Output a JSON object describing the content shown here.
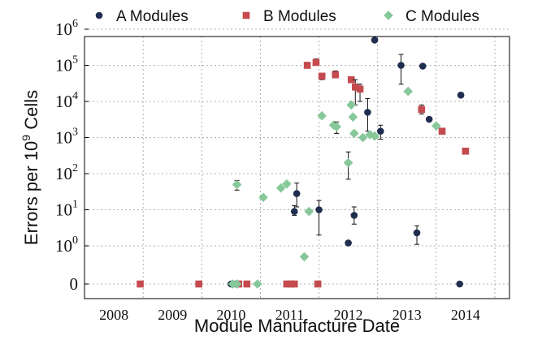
{
  "chart_data": {
    "type": "scatter",
    "title": "",
    "xlabel": "Module Manufacture Date",
    "ylabel": "Errors per 10^9 Cells",
    "ylabel_parts": [
      "Errors per 10",
      "9",
      " Cells"
    ],
    "y_scale": "log (with zero shown at bottom)",
    "ylim": [
      0,
      1000000
    ],
    "xlim": [
      2007.5,
      2014.75
    ],
    "grid": true,
    "legend_position": "top",
    "x_tick_labels": [
      "2008",
      "2009",
      "2010",
      "2011",
      "2012",
      "2013",
      "2014"
    ],
    "y_ticks": [
      {
        "value": 0,
        "base": "0",
        "exp": ""
      },
      {
        "value": 1,
        "base": "10",
        "exp": "0"
      },
      {
        "value": 10,
        "base": "10",
        "exp": "1"
      },
      {
        "value": 100,
        "base": "10",
        "exp": "2"
      },
      {
        "value": 1000,
        "base": "10",
        "exp": "3"
      },
      {
        "value": 10000,
        "base": "10",
        "exp": "4"
      },
      {
        "value": 100000,
        "base": "10",
        "exp": "5"
      },
      {
        "value": 1000000,
        "base": "10",
        "exp": "6"
      }
    ],
    "series": [
      {
        "name": "A Modules",
        "marker": "circle",
        "color": "#1f2d4f",
        "points": [
          {
            "x": 2010.0,
            "y": 0
          },
          {
            "x": 2010.08,
            "y": 0
          },
          {
            "x": 2010.12,
            "y": 0
          },
          {
            "x": 2011.08,
            "y": 9,
            "err": [
              7,
              13
            ]
          },
          {
            "x": 2011.12,
            "y": 28,
            "err": [
              12,
              55
            ]
          },
          {
            "x": 2011.5,
            "y": 10,
            "err": [
              2,
              18
            ]
          },
          {
            "x": 2012.0,
            "y": 1.2
          },
          {
            "x": 2012.1,
            "y": 7,
            "err": [
              4,
              12
            ]
          },
          {
            "x": 2012.33,
            "y": 5000,
            "err": [
              1500,
              12000
            ]
          },
          {
            "x": 2012.45,
            "y": 500000
          },
          {
            "x": 2012.55,
            "y": 1500,
            "err": [
              900,
              2200
            ]
          },
          {
            "x": 2012.9,
            "y": 100000,
            "err": [
              30000,
              200000
            ]
          },
          {
            "x": 2013.17,
            "y": 2.3,
            "err": [
              1.1,
              3.6
            ]
          },
          {
            "x": 2013.27,
            "y": 95000
          },
          {
            "x": 2013.38,
            "y": 3200
          },
          {
            "x": 2013.9,
            "y": 0
          },
          {
            "x": 2013.92,
            "y": 15000
          }
        ]
      },
      {
        "name": "B Modules",
        "marker": "square",
        "color": "#c44a4e",
        "points": [
          {
            "x": 2008.45,
            "y": 0
          },
          {
            "x": 2009.45,
            "y": 0
          },
          {
            "x": 2010.13,
            "y": 0
          },
          {
            "x": 2010.27,
            "y": 0
          },
          {
            "x": 2010.95,
            "y": 0
          },
          {
            "x": 2011.02,
            "y": 0
          },
          {
            "x": 2011.08,
            "y": 0
          },
          {
            "x": 2011.48,
            "y": 0
          },
          {
            "x": 2011.3,
            "y": 100000
          },
          {
            "x": 2011.45,
            "y": 120000,
            "err": [
              100000,
              150000
            ]
          },
          {
            "x": 2011.55,
            "y": 50000,
            "err": [
              40000,
              60000
            ]
          },
          {
            "x": 2011.78,
            "y": 55000,
            "err": [
              45000,
              70000
            ]
          },
          {
            "x": 2012.05,
            "y": 40000
          },
          {
            "x": 2012.12,
            "y": 25000,
            "err": [
              8000,
              40000
            ]
          },
          {
            "x": 2012.2,
            "y": 22000,
            "err": [
              10000,
              30000
            ]
          },
          {
            "x": 2013.25,
            "y": 6000,
            "err": [
              4500,
              8000
            ]
          },
          {
            "x": 2013.6,
            "y": 1500
          },
          {
            "x": 2014.0,
            "y": 420
          }
        ]
      },
      {
        "name": "C Modules",
        "marker": "diamond",
        "color": "#86c89a",
        "points": [
          {
            "x": 2010.03,
            "y": 0
          },
          {
            "x": 2010.1,
            "y": 0
          },
          {
            "x": 2010.1,
            "y": 50,
            "err": [
              35,
              65
            ]
          },
          {
            "x": 2010.45,
            "y": 0
          },
          {
            "x": 2010.55,
            "y": 22
          },
          {
            "x": 2010.85,
            "y": 40
          },
          {
            "x": 2010.95,
            "y": 52
          },
          {
            "x": 2011.25,
            "y": 0.5
          },
          {
            "x": 2011.33,
            "y": 9
          },
          {
            "x": 2011.55,
            "y": 4000
          },
          {
            "x": 2011.75,
            "y": 2200
          },
          {
            "x": 2011.8,
            "y": 2000,
            "err": [
              1300,
              2700
            ]
          },
          {
            "x": 2012.0,
            "y": 200,
            "err": [
              70,
              400
            ]
          },
          {
            "x": 2012.05,
            "y": 8000
          },
          {
            "x": 2012.08,
            "y": 3700
          },
          {
            "x": 2012.1,
            "y": 1300
          },
          {
            "x": 2012.25,
            "y": 1000
          },
          {
            "x": 2012.37,
            "y": 1200
          },
          {
            "x": 2012.45,
            "y": 1100
          },
          {
            "x": 2013.02,
            "y": 19000
          },
          {
            "x": 2013.5,
            "y": 2100
          }
        ]
      }
    ]
  }
}
